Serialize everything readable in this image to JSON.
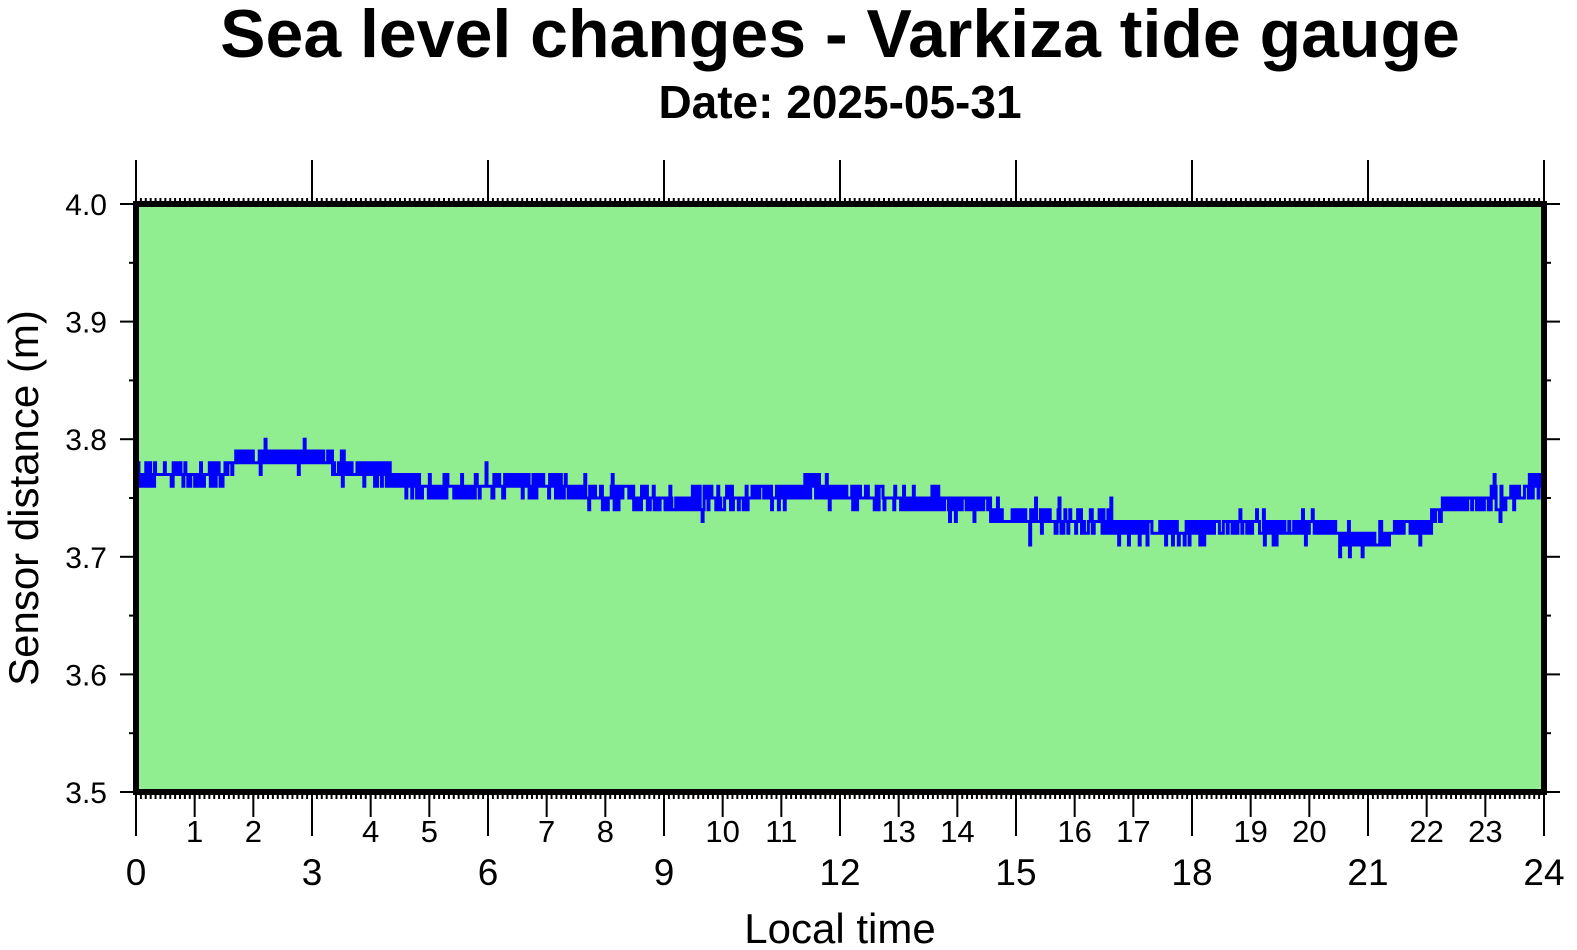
{
  "chart_data": {
    "type": "line",
    "title": "Sea level changes - Varkiza tide gauge",
    "subtitle": "Date: 2025-05-31",
    "xlabel": "Local time",
    "ylabel": "Sensor distance (m)",
    "xlim": [
      0,
      24
    ],
    "ylim": [
      3.5,
      4.0
    ],
    "x_major_ticks": [
      0,
      3,
      6,
      9,
      12,
      15,
      18,
      21,
      24
    ],
    "x_minor_ticks": [
      1,
      2,
      4,
      5,
      7,
      8,
      10,
      11,
      13,
      14,
      16,
      17,
      19,
      20,
      22,
      23
    ],
    "y_ticks": [
      "3.5",
      "3.6",
      "3.7",
      "3.8",
      "3.9",
      "4.0"
    ],
    "grid": false,
    "colors": {
      "plot_background": "#90ee90",
      "line": "#0000ff",
      "frame": "#000000"
    },
    "series": [
      {
        "x": [
          0,
          0.5,
          1,
          1.5,
          1.8,
          2,
          2.5,
          3,
          3.5,
          4,
          4.5,
          5,
          5.5,
          6,
          6.5,
          7,
          7.5,
          8,
          8.5,
          9,
          9.5,
          10,
          10.5,
          11,
          11.5,
          12,
          12.5,
          13,
          13.5,
          14,
          14.5,
          15,
          15.5,
          16,
          16.5,
          17,
          17.5,
          18,
          18.5,
          19,
          19.5,
          20,
          20.5,
          20.8,
          21,
          21.5,
          22,
          22.5,
          23,
          23.5,
          24
        ],
        "values": [
          3.767,
          3.77,
          3.768,
          3.772,
          3.785,
          3.782,
          3.783,
          3.786,
          3.778,
          3.771,
          3.765,
          3.758,
          3.756,
          3.757,
          3.762,
          3.766,
          3.755,
          3.751,
          3.748,
          3.746,
          3.747,
          3.749,
          3.751,
          3.753,
          3.758,
          3.755,
          3.75,
          3.746,
          3.747,
          3.744,
          3.742,
          3.735,
          3.731,
          3.728,
          3.731,
          3.725,
          3.723,
          3.722,
          3.726,
          3.728,
          3.722,
          3.727,
          3.722,
          3.71,
          3.716,
          3.723,
          3.728,
          3.745,
          3.748,
          3.752,
          3.764
        ]
      }
    ]
  }
}
